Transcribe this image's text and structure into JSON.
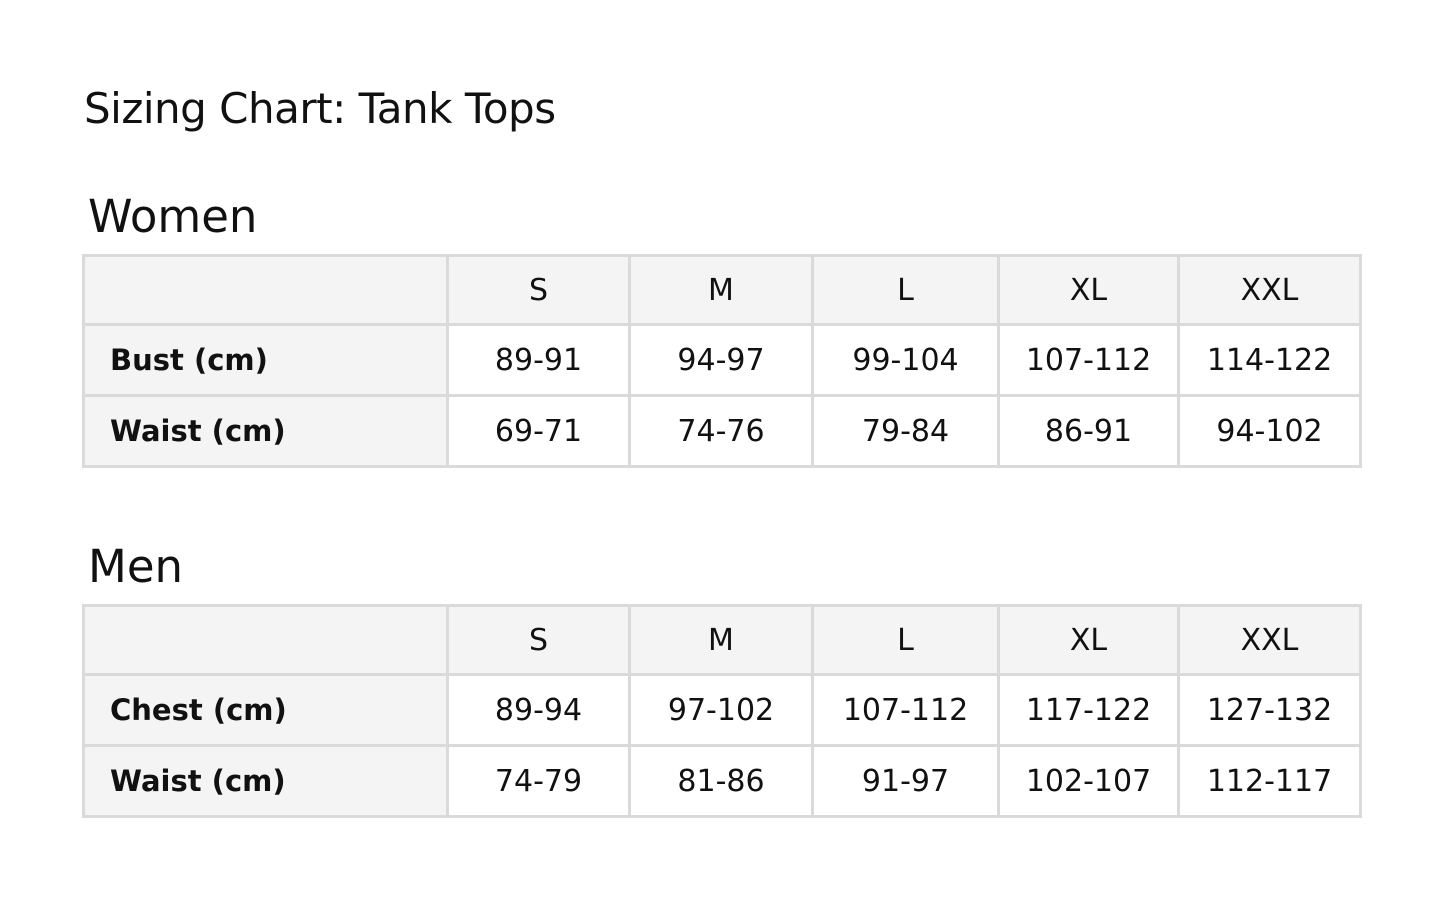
{
  "title": "Sizing Chart: Tank Tops",
  "sizes": [
    "S",
    "M",
    "L",
    "XL",
    "XXL"
  ],
  "women": {
    "heading": "Women",
    "rows": [
      {
        "label": "Bust (cm)",
        "values": [
          "89-91",
          "94-97",
          "99-104",
          "107-112",
          "114-122"
        ]
      },
      {
        "label": "Waist (cm)",
        "values": [
          "69-71",
          "74-76",
          "79-84",
          "86-91",
          "94-102"
        ]
      }
    ]
  },
  "men": {
    "heading": "Men",
    "rows": [
      {
        "label": "Chest (cm)",
        "values": [
          "89-94",
          "97-102",
          "107-112",
          "117-122",
          "127-132"
        ]
      },
      {
        "label": "Waist (cm)",
        "values": [
          "74-79",
          "81-86",
          "91-97",
          "102-107",
          "112-117"
        ]
      }
    ]
  }
}
